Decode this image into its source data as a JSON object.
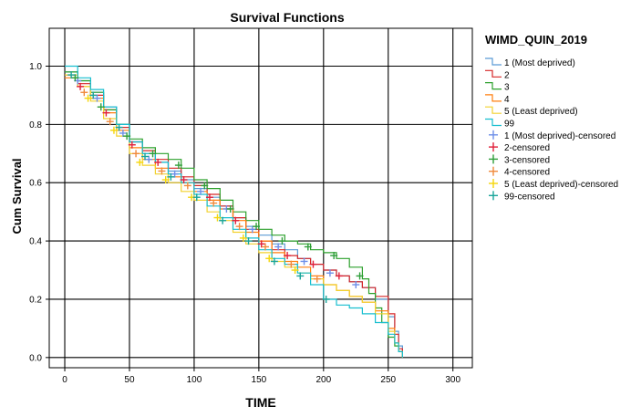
{
  "chart_data": {
    "type": "line",
    "title": "Survival Functions",
    "xlabel": "TIME",
    "ylabel": "Cum Survival",
    "xlim": [
      -12,
      315
    ],
    "ylim": [
      -0.035,
      1.13
    ],
    "x_ticks": [
      0,
      50,
      100,
      150,
      200,
      250,
      300
    ],
    "y_ticks": [
      0.0,
      0.2,
      0.4,
      0.6,
      0.8,
      1.0
    ],
    "x_tick_labels": [
      "0",
      "50",
      "100",
      "150",
      "200",
      "250",
      "300"
    ],
    "y_tick_labels": [
      "0.0",
      "0.2",
      "0.4",
      "0.6",
      "0.8",
      "1.0"
    ],
    "grid": true,
    "legend_title": "WIMD_QUIN_2019",
    "legend_position": "right",
    "colors": {
      "background": "#ffffff",
      "grid": "#000000",
      "axis": "#000000"
    },
    "series": [
      {
        "name": "1 (Most deprived)",
        "censored_name": "1 (Most deprived)-censored",
        "color": "#5b9bd5",
        "censor_color": "#6e8fe8",
        "x": [
          0,
          10,
          20,
          30,
          40,
          50,
          60,
          70,
          80,
          90,
          100,
          110,
          120,
          130,
          140,
          150,
          160,
          170,
          180,
          190,
          200,
          210,
          220,
          230,
          240,
          250,
          255,
          258,
          261
        ],
        "y": [
          0.98,
          0.95,
          0.91,
          0.86,
          0.8,
          0.74,
          0.7,
          0.67,
          0.64,
          0.61,
          0.58,
          0.55,
          0.52,
          0.48,
          0.45,
          0.42,
          0.39,
          0.37,
          0.34,
          0.32,
          0.3,
          0.28,
          0.26,
          0.24,
          0.2,
          0.14,
          0.09,
          0.04,
          0.0
        ],
        "censored_x": [
          10,
          25,
          45,
          65,
          85,
          105,
          125,
          145,
          165,
          185,
          205,
          225
        ],
        "censored_y": [
          0.95,
          0.89,
          0.77,
          0.68,
          0.63,
          0.57,
          0.51,
          0.44,
          0.38,
          0.33,
          0.29,
          0.25
        ]
      },
      {
        "name": "2",
        "censored_name": "2-censored",
        "color": "#d62728",
        "censor_color": "#e0203a",
        "x": [
          0,
          10,
          20,
          30,
          40,
          50,
          60,
          70,
          80,
          90,
          100,
          110,
          120,
          130,
          140,
          150,
          160,
          170,
          180,
          190,
          200,
          210,
          220,
          230,
          240,
          250,
          255,
          258,
          261
        ],
        "y": [
          0.97,
          0.94,
          0.9,
          0.85,
          0.79,
          0.74,
          0.71,
          0.68,
          0.65,
          0.62,
          0.59,
          0.56,
          0.52,
          0.48,
          0.44,
          0.4,
          0.37,
          0.35,
          0.34,
          0.32,
          0.3,
          0.28,
          0.26,
          0.24,
          0.21,
          0.15,
          0.08,
          0.03,
          0.0
        ],
        "censored_x": [
          12,
          32,
          52,
          72,
          92,
          112,
          132,
          152,
          172,
          192,
          212
        ],
        "censored_y": [
          0.93,
          0.84,
          0.73,
          0.67,
          0.61,
          0.55,
          0.47,
          0.39,
          0.35,
          0.32,
          0.28
        ]
      },
      {
        "name": "3",
        "censored_name": "3-censored",
        "color": "#2ca02c",
        "censor_color": "#2f9e3a",
        "x": [
          0,
          10,
          20,
          30,
          40,
          50,
          60,
          70,
          80,
          90,
          100,
          110,
          120,
          130,
          140,
          150,
          160,
          170,
          180,
          190,
          200,
          210,
          220,
          230,
          235,
          240,
          245,
          250,
          255,
          258,
          261
        ],
        "y": [
          0.98,
          0.95,
          0.91,
          0.85,
          0.8,
          0.75,
          0.72,
          0.7,
          0.68,
          0.65,
          0.61,
          0.58,
          0.54,
          0.5,
          0.47,
          0.44,
          0.42,
          0.4,
          0.39,
          0.37,
          0.36,
          0.34,
          0.31,
          0.27,
          0.22,
          0.17,
          0.12,
          0.07,
          0.04,
          0.02,
          0.0
        ],
        "censored_x": [
          8,
          28,
          48,
          68,
          88,
          108,
          128,
          148,
          168,
          188,
          208,
          228
        ],
        "censored_y": [
          0.96,
          0.86,
          0.76,
          0.7,
          0.66,
          0.59,
          0.51,
          0.45,
          0.4,
          0.38,
          0.35,
          0.28
        ]
      },
      {
        "name": "4",
        "censored_name": "4-censored",
        "color": "#ff7f0e",
        "censor_color": "#f08a3c",
        "x": [
          0,
          10,
          20,
          30,
          40,
          50,
          60,
          70,
          80,
          90,
          100,
          110,
          120,
          130,
          140,
          150,
          160,
          170,
          180,
          190,
          200,
          210,
          220,
          230,
          240,
          250,
          255,
          258,
          261
        ],
        "y": [
          0.96,
          0.93,
          0.89,
          0.84,
          0.78,
          0.72,
          0.68,
          0.65,
          0.62,
          0.6,
          0.57,
          0.54,
          0.51,
          0.47,
          0.43,
          0.4,
          0.36,
          0.33,
          0.31,
          0.28,
          0.25,
          0.23,
          0.21,
          0.19,
          0.16,
          0.1,
          0.05,
          0.02,
          0.0
        ],
        "censored_x": [
          15,
          35,
          55,
          75,
          95,
          115,
          135,
          155,
          175,
          195
        ],
        "censored_y": [
          0.91,
          0.81,
          0.7,
          0.64,
          0.59,
          0.53,
          0.45,
          0.38,
          0.32,
          0.27
        ]
      },
      {
        "name": "5 (Least deprived)",
        "censored_name": "5 (Least deprived)-censored",
        "color": "#f2d12e",
        "censor_color": "#f5d60a",
        "x": [
          0,
          10,
          20,
          30,
          40,
          50,
          60,
          70,
          80,
          90,
          100,
          110,
          120,
          130,
          140,
          150,
          160,
          170,
          180,
          190,
          200,
          210,
          220,
          230,
          240,
          250,
          255,
          258,
          261
        ],
        "y": [
          0.97,
          0.93,
          0.88,
          0.82,
          0.76,
          0.7,
          0.66,
          0.63,
          0.6,
          0.57,
          0.54,
          0.5,
          0.47,
          0.43,
          0.39,
          0.36,
          0.33,
          0.31,
          0.29,
          0.27,
          0.25,
          0.23,
          0.21,
          0.19,
          0.15,
          0.09,
          0.05,
          0.02,
          0.0
        ],
        "censored_x": [
          18,
          38,
          58,
          78,
          98,
          118,
          138,
          158,
          178
        ],
        "censored_y": [
          0.89,
          0.78,
          0.67,
          0.61,
          0.55,
          0.48,
          0.41,
          0.34,
          0.3
        ]
      },
      {
        "name": "99",
        "censored_name": "99-censored",
        "color": "#17becf",
        "censor_color": "#1aa59a",
        "x": [
          0,
          10,
          20,
          30,
          40,
          50,
          60,
          70,
          80,
          90,
          100,
          110,
          120,
          130,
          140,
          150,
          160,
          170,
          180,
          190,
          200,
          210,
          220,
          230,
          240,
          250,
          255,
          258,
          261
        ],
        "y": [
          1.0,
          0.96,
          0.92,
          0.86,
          0.8,
          0.74,
          0.7,
          0.67,
          0.63,
          0.6,
          0.56,
          0.52,
          0.48,
          0.44,
          0.41,
          0.37,
          0.34,
          0.32,
          0.29,
          0.25,
          0.2,
          0.18,
          0.17,
          0.15,
          0.12,
          0.08,
          0.05,
          0.02,
          0.0
        ],
        "censored_x": [
          5,
          22,
          42,
          62,
          82,
          102,
          122,
          142,
          162,
          182,
          202
        ],
        "censored_y": [
          0.97,
          0.9,
          0.79,
          0.69,
          0.62,
          0.55,
          0.47,
          0.4,
          0.33,
          0.28,
          0.2
        ]
      }
    ]
  }
}
